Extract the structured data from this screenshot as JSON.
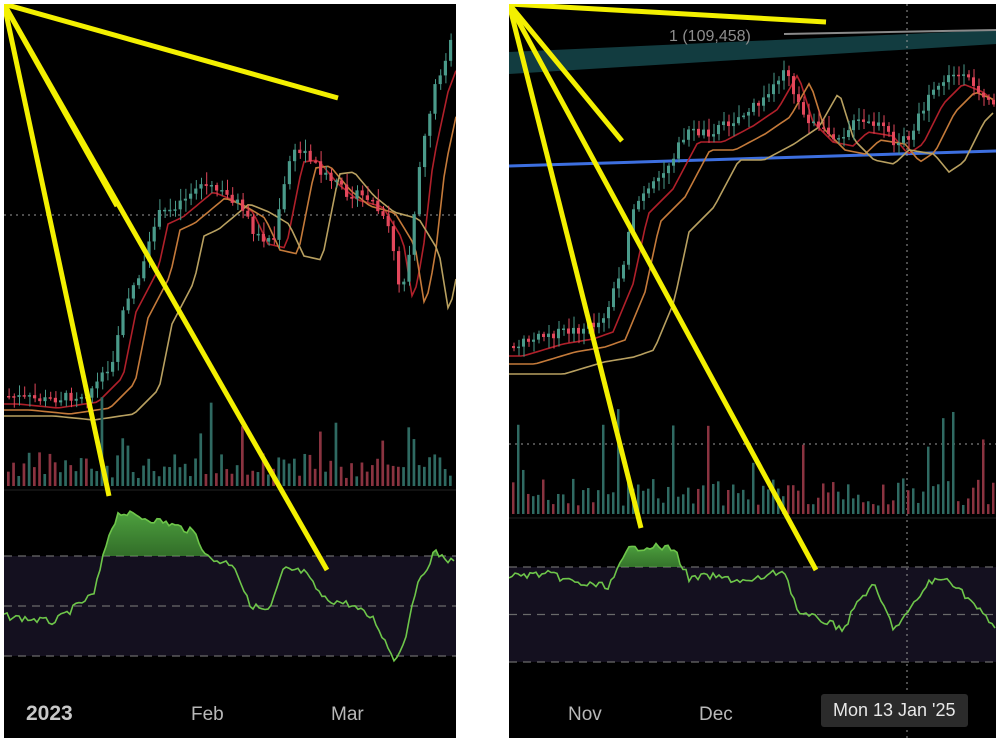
{
  "colors": {
    "background": "#000000",
    "up_candle": "#4a9a8a",
    "down_candle": "#e2475b",
    "volume_up": "#2f6a62",
    "volume_down": "#8a3340",
    "ema_fast": "#b0202a",
    "ema_mid": "#c47a3a",
    "ema_slow": "#b8a060",
    "trendline": "#f3f000",
    "rsi_line": "#6ec64a",
    "rsi_band": "#14101f",
    "support_line": "#3d6fe0",
    "fib_zone": "#123c40"
  },
  "left_chart": {
    "x_axis_labels": [
      "2023",
      "Feb",
      "Mar"
    ]
  },
  "right_chart": {
    "x_axis_labels": [
      "Nov",
      "Dec"
    ],
    "fib_label": "1 (109,458)",
    "crosshair_date": "Mon 13 Jan '25"
  },
  "chart_data": [
    {
      "type": "candlestick",
      "title": "",
      "x_labels": [
        "2023",
        "Feb",
        "Mar"
      ],
      "price_trend_relative": [
        100,
        99,
        98,
        100,
        112,
        130,
        138,
        141,
        144,
        143,
        139,
        150,
        147,
        143,
        141,
        134,
        142,
        160,
        166
      ],
      "annotations": [
        "price trendline rising (higher highs)",
        "RSI trendline falling (bearish divergence)"
      ],
      "panels": [
        "price with 3 moving averages",
        "volume",
        "RSI"
      ]
    },
    {
      "type": "candlestick",
      "title": "",
      "x_labels": [
        "Nov",
        "Dec"
      ],
      "price_trend_relative": [
        100,
        103,
        106,
        104,
        110,
        130,
        140,
        146,
        148,
        152,
        150,
        155,
        147,
        151,
        149,
        153,
        156,
        154,
        149
      ],
      "annotations": [
        "price trendline rising",
        "RSI trendline falling",
        "horizontal support line",
        "Fibonacci level 1 (109,458)"
      ],
      "panels": [
        "price with 3 moving averages",
        "volume",
        "RSI"
      ]
    }
  ]
}
